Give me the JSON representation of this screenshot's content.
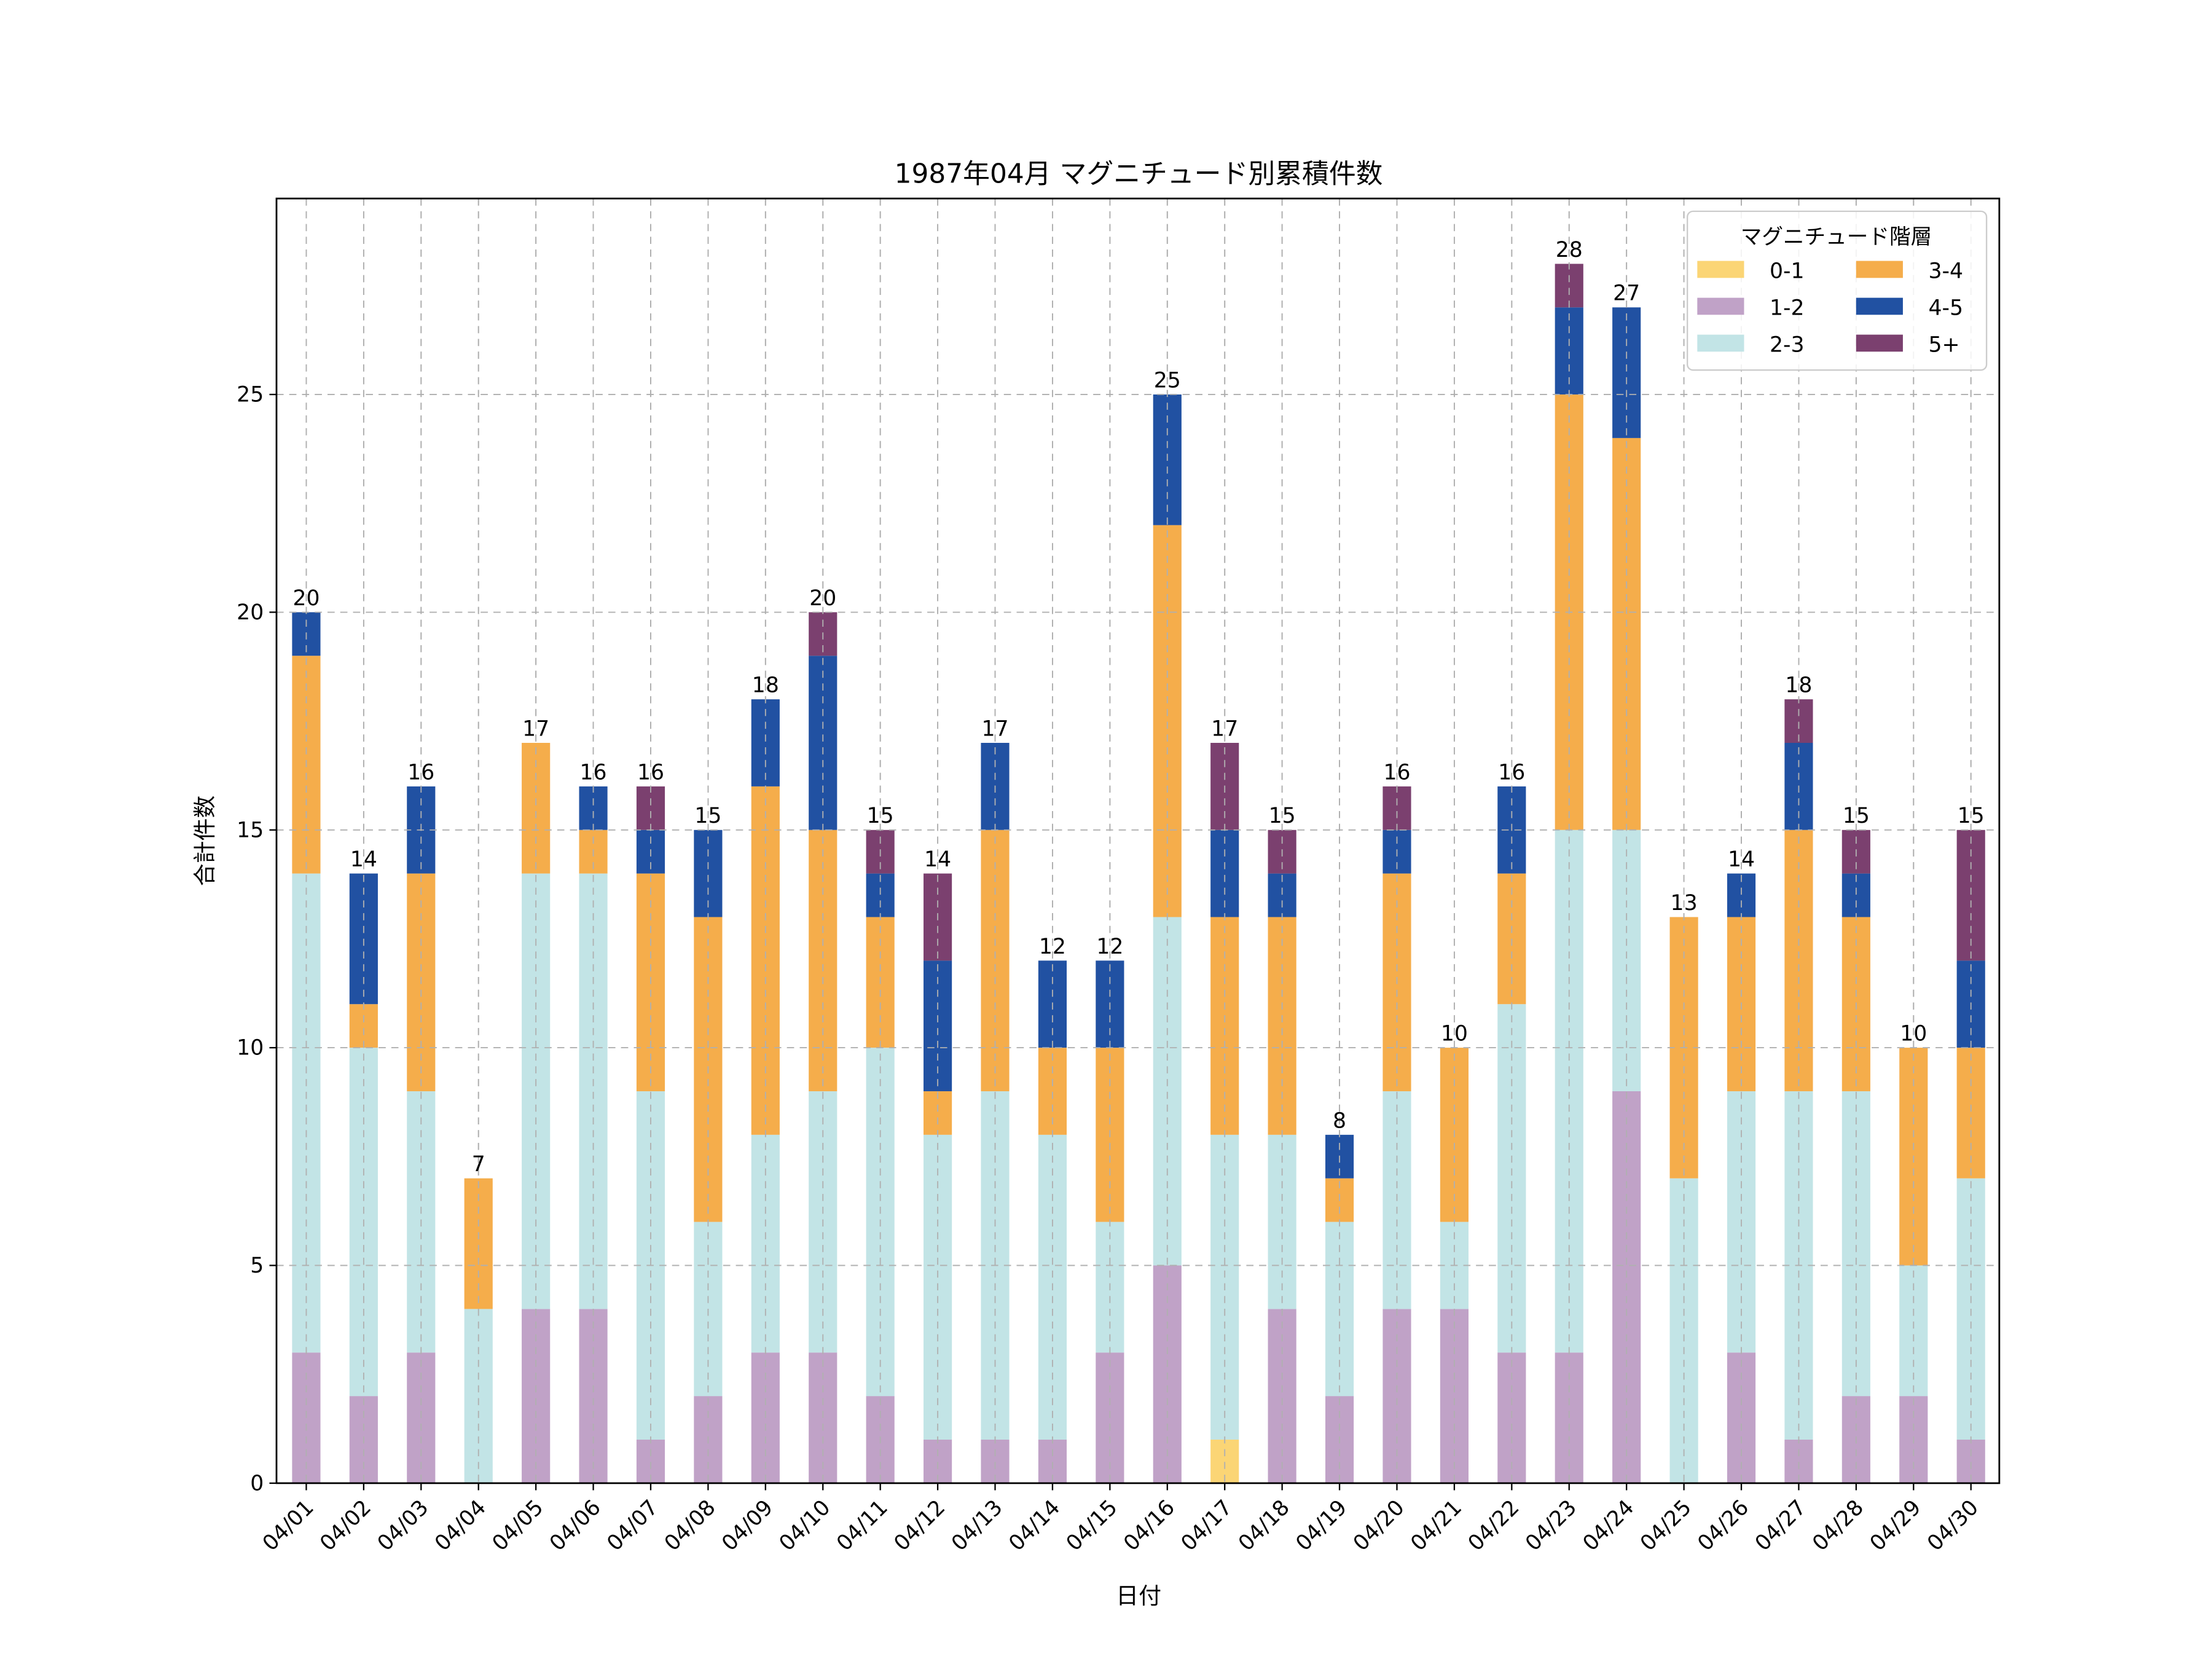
{
  "chart_data": {
    "type": "bar",
    "stacked": true,
    "title": "1987年04月 マグニチュード別累積件数",
    "xlabel": "日付",
    "ylabel": "合計件数",
    "ylim": [
      0,
      29.5
    ],
    "yticks": [
      0,
      5,
      10,
      15,
      20,
      25
    ],
    "grid": true,
    "legend": {
      "title": "マグニチュード階層",
      "placement": "top-right",
      "columns": 2
    },
    "categories": [
      "04/01",
      "04/02",
      "04/03",
      "04/04",
      "04/05",
      "04/06",
      "04/07",
      "04/08",
      "04/09",
      "04/10",
      "04/11",
      "04/12",
      "04/13",
      "04/14",
      "04/15",
      "04/16",
      "04/17",
      "04/18",
      "04/19",
      "04/20",
      "04/21",
      "04/22",
      "04/23",
      "04/24",
      "04/25",
      "04/26",
      "04/27",
      "04/28",
      "04/29",
      "04/30"
    ],
    "series": [
      {
        "name": "0-1",
        "color": "#FBD575",
        "values": [
          0,
          0,
          0,
          0,
          0,
          0,
          0,
          0,
          0,
          0,
          0,
          0,
          0,
          0,
          0,
          0,
          1,
          0,
          0,
          0,
          0,
          0,
          0,
          0,
          0,
          0,
          0,
          0,
          0,
          0
        ]
      },
      {
        "name": "1-2",
        "color": "#C0A2C7",
        "values": [
          3,
          2,
          3,
          0,
          4,
          4,
          1,
          2,
          3,
          3,
          2,
          1,
          1,
          1,
          3,
          5,
          0,
          4,
          2,
          4,
          4,
          3,
          3,
          9,
          0,
          3,
          1,
          2,
          2,
          1
        ]
      },
      {
        "name": "2-3",
        "color": "#C2E4E6",
        "values": [
          11,
          8,
          6,
          4,
          10,
          10,
          8,
          4,
          5,
          6,
          8,
          7,
          8,
          7,
          3,
          8,
          7,
          4,
          4,
          5,
          2,
          8,
          12,
          6,
          7,
          6,
          8,
          7,
          3,
          6
        ]
      },
      {
        "name": "3-4",
        "color": "#F5AD4B",
        "values": [
          5,
          1,
          5,
          3,
          3,
          1,
          5,
          7,
          8,
          6,
          3,
          1,
          6,
          2,
          4,
          9,
          5,
          5,
          1,
          5,
          4,
          3,
          10,
          9,
          6,
          4,
          6,
          4,
          5,
          3
        ]
      },
      {
        "name": "4-5",
        "color": "#2151A2",
        "values": [
          1,
          3,
          2,
          0,
          0,
          1,
          1,
          2,
          2,
          4,
          1,
          3,
          2,
          2,
          2,
          3,
          2,
          1,
          1,
          1,
          0,
          2,
          2,
          3,
          0,
          1,
          2,
          1,
          0,
          2
        ]
      },
      {
        "name": "5+",
        "color": "#7B406F",
        "values": [
          0,
          0,
          0,
          0,
          0,
          0,
          1,
          0,
          0,
          1,
          1,
          2,
          0,
          0,
          0,
          0,
          2,
          1,
          0,
          1,
          0,
          0,
          1,
          0,
          0,
          0,
          1,
          1,
          0,
          3
        ]
      }
    ],
    "totals": [
      20,
      14,
      16,
      7,
      17,
      16,
      16,
      15,
      18,
      20,
      15,
      14,
      17,
      12,
      12,
      25,
      17,
      15,
      8,
      16,
      10,
      16,
      28,
      27,
      13,
      14,
      18,
      15,
      10,
      15
    ]
  }
}
